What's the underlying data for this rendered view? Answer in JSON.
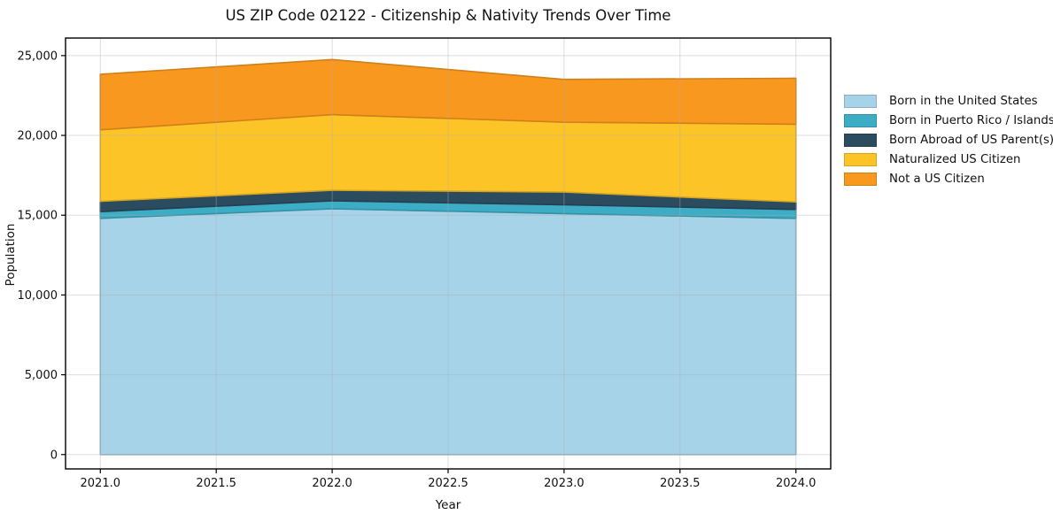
{
  "title": "US ZIP Code 02122 - Citizenship & Nativity Trends Over Time",
  "chart_data": {
    "type": "area",
    "stacked": true,
    "title": "US ZIP Code 02122 - Citizenship & Nativity Trends Over Time",
    "xlabel": "Year",
    "ylabel": "Population",
    "x": [
      2021,
      2022,
      2023,
      2024
    ],
    "series": [
      {
        "name": "Born in the United States",
        "color": "#A6D3E8",
        "values": [
          14800,
          15400,
          15100,
          14800
        ]
      },
      {
        "name": "Born in Puerto Rico / Islands",
        "color": "#3DACC5",
        "values": [
          420,
          500,
          550,
          560
        ]
      },
      {
        "name": "Born Abroad of US Parent(s)",
        "color": "#2B4B5F",
        "values": [
          650,
          660,
          800,
          470
        ]
      },
      {
        "name": "Naturalized US Citizen",
        "color": "#FDC428",
        "values": [
          4480,
          4740,
          4380,
          4870
        ]
      },
      {
        "name": "Not a US Citizen",
        "color": "#F8981F",
        "values": [
          3480,
          3450,
          2680,
          2880
        ]
      }
    ],
    "totals": [
      23830,
      24750,
      23510,
      23580
    ],
    "x_ticks": [
      2021.0,
      2021.5,
      2022.0,
      2022.5,
      2023.0,
      2023.5,
      2024.0
    ],
    "x_tick_labels": [
      "2021.0",
      "2021.5",
      "2022.0",
      "2022.5",
      "2023.0",
      "2023.5",
      "2024.0"
    ],
    "y_ticks": [
      0,
      5000,
      10000,
      15000,
      20000,
      25000
    ],
    "y_tick_labels": [
      "0",
      "5,000",
      "10,000",
      "15,000",
      "20,000",
      "25,000"
    ],
    "xlim": [
      2020.85,
      2024.15
    ],
    "ylim": [
      -900,
      26100
    ],
    "grid": true,
    "grid_over_data": true,
    "legend_position": "outside-right",
    "background": "#ffffff",
    "spine_color": "#000000"
  }
}
